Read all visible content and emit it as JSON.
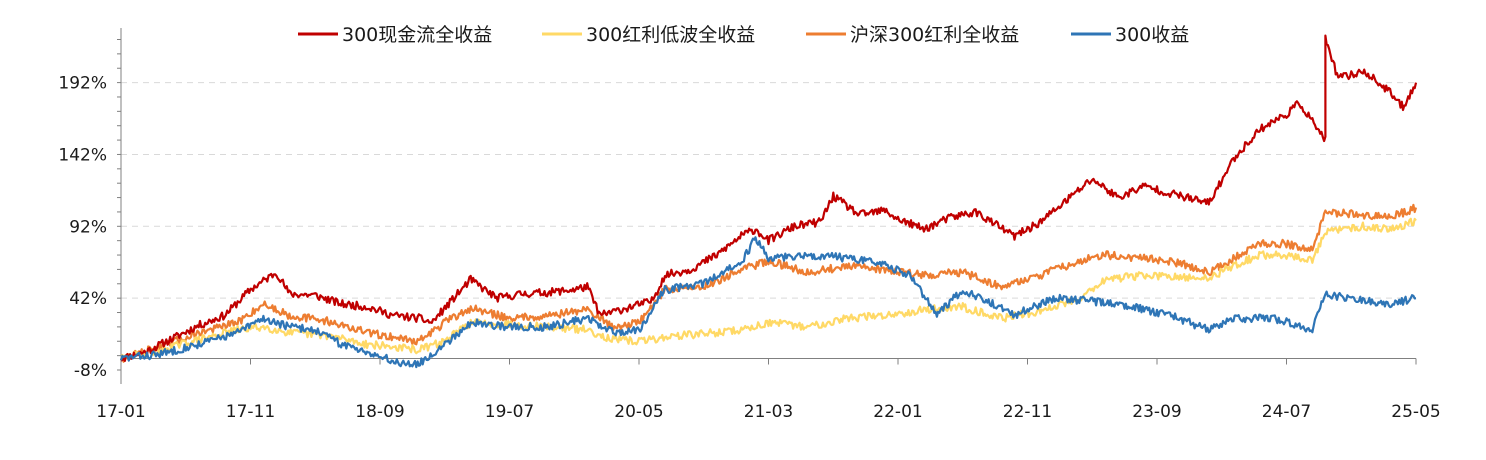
{
  "chart_data": {
    "type": "line",
    "xlabel": "",
    "ylabel": "",
    "ylim": [
      -8,
      230
    ],
    "y_ticks": [
      -8,
      42,
      92,
      142,
      192
    ],
    "y_tick_labels": [
      "-8%",
      "42%",
      "92%",
      "142%",
      "192%"
    ],
    "x_ticks": [
      "17-01",
      "17-11",
      "18-09",
      "19-07",
      "20-05",
      "21-03",
      "22-01",
      "22-11",
      "23-09",
      "24-07",
      "25-05"
    ],
    "x_range": [
      "2017-01",
      "2025-05"
    ],
    "grid": "horizontal dashed",
    "legend_placement": "top-center",
    "series": [
      {
        "name": "300现金流全收益",
        "color": "#C00000",
        "points": [
          [
            "2017-01",
            0
          ],
          [
            "2017-03",
            5
          ],
          [
            "2017-05",
            14
          ],
          [
            "2017-07",
            23
          ],
          [
            "2017-09",
            30
          ],
          [
            "2017-11",
            48
          ],
          [
            "2018-01",
            60
          ],
          [
            "2018-02",
            45
          ],
          [
            "2018-04",
            44
          ],
          [
            "2018-06",
            38
          ],
          [
            "2018-08",
            36
          ],
          [
            "2018-10",
            30
          ],
          [
            "2018-12",
            28
          ],
          [
            "2019-01",
            25
          ],
          [
            "2019-03",
            45
          ],
          [
            "2019-04",
            55
          ],
          [
            "2019-06",
            42
          ],
          [
            "2019-08",
            45
          ],
          [
            "2019-10",
            46
          ],
          [
            "2019-12",
            48
          ],
          [
            "2020-01",
            50
          ],
          [
            "2020-02",
            30
          ],
          [
            "2020-04",
            35
          ],
          [
            "2020-06",
            40
          ],
          [
            "2020-07",
            58
          ],
          [
            "2020-09",
            62
          ],
          [
            "2020-11",
            72
          ],
          [
            "2021-01",
            86
          ],
          [
            "2021-02",
            90
          ],
          [
            "2021-03",
            82
          ],
          [
            "2021-05",
            92
          ],
          [
            "2021-07",
            95
          ],
          [
            "2021-08",
            113
          ],
          [
            "2021-10",
            100
          ],
          [
            "2021-12",
            103
          ],
          [
            "2022-01",
            97
          ],
          [
            "2022-03",
            90
          ],
          [
            "2022-05",
            98
          ],
          [
            "2022-07",
            102
          ],
          [
            "2022-10",
            85
          ],
          [
            "2022-12",
            95
          ],
          [
            "2023-02",
            110
          ],
          [
            "2023-04",
            125
          ],
          [
            "2023-06",
            112
          ],
          [
            "2023-08",
            120
          ],
          [
            "2023-10",
            115
          ],
          [
            "2024-01",
            108
          ],
          [
            "2024-03",
            140
          ],
          [
            "2024-05",
            160
          ],
          [
            "2024-07",
            170
          ],
          [
            "2024-08",
            178
          ],
          [
            "2024-09",
            165
          ],
          [
            "2024-10",
            152
          ],
          [
            "2024-10",
            222
          ],
          [
            "2024-11",
            195
          ],
          [
            "2025-01",
            200
          ],
          [
            "2025-03",
            185
          ],
          [
            "2025-04",
            175
          ],
          [
            "2025-05",
            192
          ]
        ]
      },
      {
        "name": "300红利低波全收益",
        "color": "#FFD966",
        "points": [
          [
            "2017-01",
            0
          ],
          [
            "2017-04",
            6
          ],
          [
            "2017-07",
            13
          ],
          [
            "2017-10",
            20
          ],
          [
            "2017-12",
            22
          ],
          [
            "2018-02",
            18
          ],
          [
            "2018-05",
            16
          ],
          [
            "2018-08",
            10
          ],
          [
            "2018-10",
            8
          ],
          [
            "2018-12",
            6
          ],
          [
            "2019-02",
            12
          ],
          [
            "2019-04",
            25
          ],
          [
            "2019-07",
            24
          ],
          [
            "2019-10",
            22
          ],
          [
            "2020-01",
            20
          ],
          [
            "2020-03",
            13
          ],
          [
            "2020-05",
            12
          ],
          [
            "2020-08",
            16
          ],
          [
            "2020-11",
            18
          ],
          [
            "2021-01",
            20
          ],
          [
            "2021-03",
            25
          ],
          [
            "2021-06",
            22
          ],
          [
            "2021-09",
            28
          ],
          [
            "2021-12",
            30
          ],
          [
            "2022-03",
            34
          ],
          [
            "2022-06",
            36
          ],
          [
            "2022-09",
            28
          ],
          [
            "2022-12",
            33
          ],
          [
            "2023-03",
            42
          ],
          [
            "2023-05",
            55
          ],
          [
            "2023-08",
            58
          ],
          [
            "2023-11",
            56
          ],
          [
            "2024-01",
            56
          ],
          [
            "2024-03",
            65
          ],
          [
            "2024-05",
            72
          ],
          [
            "2024-07",
            72
          ],
          [
            "2024-09",
            68
          ],
          [
            "2024-10",
            88
          ],
          [
            "2025-01",
            92
          ],
          [
            "2025-03",
            90
          ],
          [
            "2025-05",
            96
          ]
        ]
      },
      {
        "name": "沪深300红利全收益",
        "color": "#ED7D31",
        "points": [
          [
            "2017-01",
            0
          ],
          [
            "2017-04",
            8
          ],
          [
            "2017-07",
            18
          ],
          [
            "2017-10",
            25
          ],
          [
            "2017-12",
            38
          ],
          [
            "2018-02",
            30
          ],
          [
            "2018-05",
            26
          ],
          [
            "2018-08",
            18
          ],
          [
            "2018-10",
            15
          ],
          [
            "2018-12",
            12
          ],
          [
            "2019-02",
            25
          ],
          [
            "2019-04",
            35
          ],
          [
            "2019-07",
            28
          ],
          [
            "2019-10",
            30
          ],
          [
            "2020-01",
            34
          ],
          [
            "2020-03",
            22
          ],
          [
            "2020-05",
            25
          ],
          [
            "2020-07",
            48
          ],
          [
            "2020-10",
            50
          ],
          [
            "2021-01",
            62
          ],
          [
            "2021-03",
            68
          ],
          [
            "2021-06",
            60
          ],
          [
            "2021-09",
            64
          ],
          [
            "2021-12",
            62
          ],
          [
            "2022-03",
            58
          ],
          [
            "2022-06",
            60
          ],
          [
            "2022-09",
            50
          ],
          [
            "2022-12",
            58
          ],
          [
            "2023-03",
            68
          ],
          [
            "2023-05",
            72
          ],
          [
            "2023-08",
            70
          ],
          [
            "2023-11",
            66
          ],
          [
            "2024-01",
            60
          ],
          [
            "2024-03",
            70
          ],
          [
            "2024-05",
            80
          ],
          [
            "2024-07",
            80
          ],
          [
            "2024-09",
            75
          ],
          [
            "2024-10",
            102
          ],
          [
            "2025-01",
            100
          ],
          [
            "2025-03",
            98
          ],
          [
            "2025-05",
            105
          ]
        ]
      },
      {
        "name": "300收益",
        "color": "#2E75B6",
        "points": [
          [
            "2017-01",
            0
          ],
          [
            "2017-04",
            3
          ],
          [
            "2017-07",
            10
          ],
          [
            "2017-10",
            18
          ],
          [
            "2017-12",
            28
          ],
          [
            "2018-02",
            22
          ],
          [
            "2018-04",
            20
          ],
          [
            "2018-06",
            10
          ],
          [
            "2018-08",
            5
          ],
          [
            "2018-10",
            -2
          ],
          [
            "2018-12",
            -4
          ],
          [
            "2019-02",
            10
          ],
          [
            "2019-04",
            25
          ],
          [
            "2019-07",
            22
          ],
          [
            "2019-10",
            22
          ],
          [
            "2020-01",
            28
          ],
          [
            "2020-03",
            18
          ],
          [
            "2020-05",
            20
          ],
          [
            "2020-07",
            48
          ],
          [
            "2020-10",
            52
          ],
          [
            "2021-01",
            68
          ],
          [
            "2021-02",
            84
          ],
          [
            "2021-03",
            70
          ],
          [
            "2021-06",
            72
          ],
          [
            "2021-09",
            70
          ],
          [
            "2021-12",
            65
          ],
          [
            "2022-02",
            58
          ],
          [
            "2022-04",
            30
          ],
          [
            "2022-06",
            48
          ],
          [
            "2022-09",
            35
          ],
          [
            "2022-10",
            30
          ],
          [
            "2023-01",
            42
          ],
          [
            "2023-04",
            40
          ],
          [
            "2023-07",
            36
          ],
          [
            "2023-10",
            30
          ],
          [
            "2024-01",
            20
          ],
          [
            "2024-03",
            28
          ],
          [
            "2024-06",
            28
          ],
          [
            "2024-09",
            20
          ],
          [
            "2024-10",
            45
          ],
          [
            "2025-01",
            40
          ],
          [
            "2025-03",
            38
          ],
          [
            "2025-05",
            42
          ]
        ]
      }
    ]
  }
}
